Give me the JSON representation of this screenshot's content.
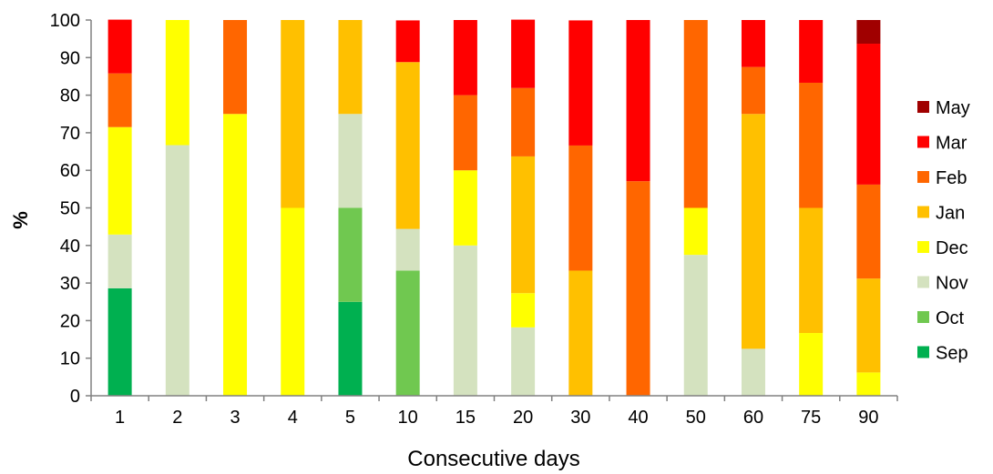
{
  "chart_data": {
    "type": "bar",
    "stacked": true,
    "xlabel": "Consecutive days",
    "ylabel": "%",
    "ylim": [
      0,
      100
    ],
    "yticks": [
      0,
      10,
      20,
      30,
      40,
      50,
      60,
      70,
      80,
      90,
      100
    ],
    "categories": [
      "1",
      "2",
      "3",
      "4",
      "5",
      "10",
      "15",
      "20",
      "30",
      "40",
      "50",
      "60",
      "75",
      "90"
    ],
    "legend_position": "right",
    "grid": false,
    "series": [
      {
        "name": "Sep",
        "color": "#00b050",
        "values": [
          28.6,
          0,
          0,
          0,
          25,
          0,
          0,
          0,
          0,
          0,
          0,
          0,
          0,
          0
        ]
      },
      {
        "name": "Oct",
        "color": "#70c850",
        "values": [
          0,
          0,
          0,
          0,
          25,
          33.3,
          0,
          0,
          0,
          0,
          0,
          0,
          0,
          0
        ]
      },
      {
        "name": "Nov",
        "color": "#d4e2bf",
        "values": [
          14.3,
          66.7,
          0,
          0,
          25,
          11.1,
          40,
          18.2,
          0,
          0,
          37.5,
          12.5,
          0,
          0
        ]
      },
      {
        "name": "Dec",
        "color": "#ffff00",
        "values": [
          28.6,
          33.3,
          75,
          50,
          0,
          0,
          20,
          9.1,
          0,
          0,
          12.5,
          0,
          16.7,
          6.2
        ]
      },
      {
        "name": "Jan",
        "color": "#ffc000",
        "values": [
          0,
          0,
          0,
          50,
          25,
          44.4,
          0,
          36.4,
          33.3,
          0,
          0,
          62.5,
          33.3,
          25
        ]
      },
      {
        "name": "Feb",
        "color": "#ff6600",
        "values": [
          14.3,
          0,
          25,
          0,
          0,
          0,
          20,
          18.2,
          33.3,
          57.1,
          50,
          12.5,
          33.3,
          25
        ]
      },
      {
        "name": "Mar",
        "color": "#ff0000",
        "values": [
          14.3,
          0,
          0,
          0,
          0,
          11.1,
          20,
          18.2,
          33.3,
          42.9,
          0,
          12.5,
          16.7,
          37.5
        ]
      },
      {
        "name": "May",
        "color": "#a00000",
        "values": [
          0,
          0,
          0,
          0,
          0,
          0,
          0,
          0,
          0,
          0,
          0,
          0,
          0,
          6.3
        ]
      }
    ]
  }
}
